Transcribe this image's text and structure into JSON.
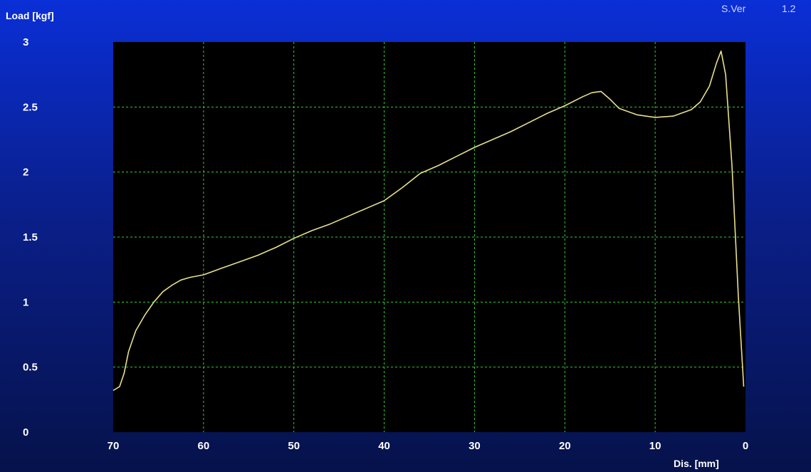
{
  "header": {
    "version_label": "S.Ver",
    "version_value": "1.2"
  },
  "chart_data": {
    "type": "line",
    "title": "",
    "xlabel": "Dis. [mm]",
    "ylabel": "Load [kgf]",
    "xlim": [
      70,
      0
    ],
    "ylim": [
      0,
      3
    ],
    "x_reversed": true,
    "grid": true,
    "x_ticks": [
      70,
      60,
      50,
      40,
      30,
      20,
      10,
      0
    ],
    "y_ticks": [
      0,
      0.5,
      1,
      1.5,
      2,
      2.5,
      3
    ],
    "y_tick_labels": [
      "0",
      "0.5",
      "1",
      "1.5",
      "2",
      "2.5",
      "3"
    ],
    "colors": {
      "plot_background": "#000000",
      "grid": "#2fd02f",
      "line": "#e8e08a"
    },
    "series": [
      {
        "x": [
          70,
          69.3,
          68.8,
          68.3,
          67.5,
          66.5,
          65.5,
          64.5,
          63.5,
          62.5,
          61.5,
          60,
          58,
          56,
          54,
          52,
          50,
          48,
          46,
          44,
          42,
          40,
          38,
          36,
          34,
          32,
          30,
          28,
          26,
          24,
          22,
          20,
          18,
          17,
          16,
          15,
          14,
          12,
          10,
          8,
          6,
          5,
          4,
          3.2,
          2.7,
          2.2,
          1.5,
          0.8,
          0.2
        ],
        "y": [
          0.32,
          0.35,
          0.45,
          0.62,
          0.78,
          0.9,
          1.0,
          1.08,
          1.13,
          1.17,
          1.19,
          1.21,
          1.26,
          1.31,
          1.36,
          1.42,
          1.49,
          1.55,
          1.6,
          1.66,
          1.72,
          1.78,
          1.88,
          1.99,
          2.05,
          2.12,
          2.19,
          2.25,
          2.31,
          2.38,
          2.45,
          2.51,
          2.58,
          2.61,
          2.62,
          2.56,
          2.49,
          2.44,
          2.42,
          2.43,
          2.48,
          2.54,
          2.66,
          2.84,
          2.93,
          2.75,
          2.05,
          1.05,
          0.35
        ]
      }
    ]
  }
}
